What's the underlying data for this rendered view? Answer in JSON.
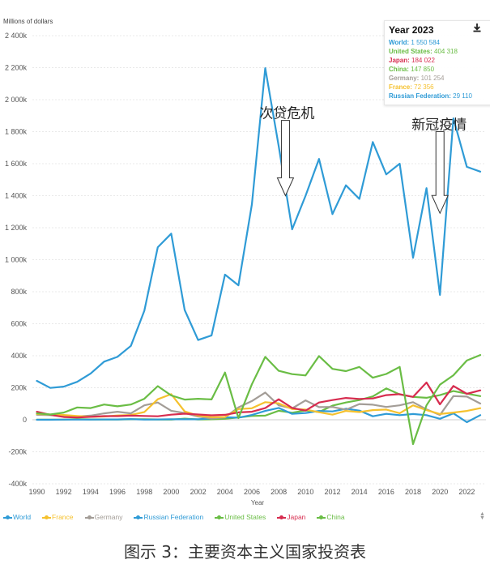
{
  "chart_data": {
    "type": "line",
    "title": "",
    "unit_label": "Millions of dollars",
    "xlabel": "Year",
    "ylabel": "Millions of dollars",
    "ylim": [
      -400000,
      2400000
    ],
    "xlim": [
      1990,
      2023
    ],
    "grid": true,
    "legend_position": "bottom",
    "y_ticks": [
      {
        "value": 2400000,
        "label": "2 400k"
      },
      {
        "value": 2200000,
        "label": "2 200k"
      },
      {
        "value": 2000000,
        "label": "2 000k"
      },
      {
        "value": 1800000,
        "label": "1 800k"
      },
      {
        "value": 1600000,
        "label": "1 600k"
      },
      {
        "value": 1400000,
        "label": "1 400k"
      },
      {
        "value": 1200000,
        "label": "1 200k"
      },
      {
        "value": 1000000,
        "label": "1 000k"
      },
      {
        "value": 800000,
        "label": "800k"
      },
      {
        "value": 600000,
        "label": "600k"
      },
      {
        "value": 400000,
        "label": "400k"
      },
      {
        "value": 200000,
        "label": "200k"
      },
      {
        "value": 0,
        "label": "0"
      },
      {
        "value": -200000,
        "label": "-200k"
      },
      {
        "value": -400000,
        "label": "-400k"
      }
    ],
    "x_ticks": [
      1990,
      1992,
      1994,
      1996,
      1998,
      2000,
      2002,
      2004,
      2006,
      2008,
      2010,
      2012,
      2014,
      2016,
      2018,
      2020,
      2022
    ],
    "x": [
      1990,
      1991,
      1992,
      1993,
      1994,
      1995,
      1996,
      1997,
      1998,
      1999,
      2000,
      2001,
      2002,
      2003,
      2004,
      2005,
      2006,
      2007,
      2008,
      2009,
      2010,
      2011,
      2012,
      2013,
      2014,
      2015,
      2016,
      2017,
      2018,
      2019,
      2020,
      2021,
      2022,
      2023
    ],
    "series": [
      {
        "name": "World",
        "color": "#2f9bd6",
        "values": [
          243000,
          199000,
          207000,
          237000,
          289000,
          363000,
          393000,
          462000,
          681000,
          1078000,
          1163000,
          686000,
          498000,
          527000,
          907000,
          840000,
          1346000,
          2197000,
          1710000,
          1190000,
          1400000,
          1630000,
          1285000,
          1465000,
          1380000,
          1735000,
          1533000,
          1600000,
          1012000,
          1447000,
          780000,
          1883000,
          1580000,
          1550584
        ]
      },
      {
        "name": "France",
        "color": "#f5c12e",
        "values": [
          36000,
          33000,
          30000,
          24000,
          18000,
          20000,
          27000,
          30000,
          48000,
          128000,
          160000,
          52000,
          26000,
          16000,
          17000,
          67000,
          72000,
          110000,
          103000,
          67000,
          64000,
          47000,
          32000,
          55000,
          48000,
          60000,
          64000,
          41000,
          90000,
          60000,
          36000,
          45000,
          55000,
          72356
        ]
      },
      {
        "name": "Germany",
        "color": "#a39d97",
        "values": [
          31000,
          29000,
          25000,
          20000,
          26000,
          40000,
          50000,
          40000,
          90000,
          108000,
          56000,
          42000,
          20000,
          8000,
          15000,
          77000,
          117000,
          170000,
          90000,
          71000,
          121000,
          79000,
          80000,
          63000,
          98000,
          94000,
          80000,
          90000,
          110000,
          65000,
          30000,
          148000,
          145000,
          101254
        ]
      },
      {
        "name": "Russian Federation",
        "color": "#2f9bd6",
        "values": [
          0,
          0,
          1000,
          1000,
          1000,
          2000,
          2000,
          4000,
          1000,
          2000,
          3000,
          3000,
          3000,
          8000,
          15000,
          13000,
          30000,
          55000,
          74000,
          37000,
          42000,
          55000,
          52000,
          69000,
          57000,
          22000,
          37000,
          29000,
          36000,
          29000,
          6000,
          40000,
          -15000,
          29110
        ]
      },
      {
        "name": "United States",
        "color": "#6abd45",
        "values": [
          40000,
          33000,
          45000,
          77000,
          73000,
          95000,
          84000,
          95000,
          131000,
          210000,
          152000,
          126000,
          131000,
          127000,
          295000,
          10000,
          222000,
          393000,
          306000,
          285000,
          277000,
          398000,
          318000,
          304000,
          330000,
          263000,
          286000,
          330000,
          -152000,
          90000,
          219000,
          278000,
          370000,
          404318
        ]
      },
      {
        "name": "Japan",
        "color": "#d72c4f",
        "values": [
          50000,
          31000,
          17000,
          14000,
          18000,
          23000,
          23000,
          26000,
          24000,
          22000,
          32000,
          38000,
          33000,
          28000,
          31000,
          46000,
          50000,
          73000,
          128000,
          74000,
          57000,
          108000,
          123000,
          136000,
          130000,
          133000,
          154000,
          160000,
          143000,
          233000,
          96000,
          211000,
          162000,
          184022
        ]
      },
      {
        "name": "China",
        "color": "#6abd45",
        "values": [
          1000,
          1000,
          1000,
          4000,
          2000,
          2000,
          2000,
          3000,
          3000,
          2000,
          1000,
          7000,
          2000,
          3000,
          6000,
          14000,
          24000,
          26000,
          56000,
          44000,
          58000,
          48000,
          88000,
          108000,
          123000,
          146000,
          196000,
          158000,
          143000,
          137000,
          154000,
          179000,
          163000,
          147850
        ]
      }
    ],
    "annotations": [
      {
        "text": "次贷危机",
        "year": 2008.5,
        "value_top": 1870000,
        "value_bottom": 1400000
      },
      {
        "text": "新冠疫情",
        "year": 2020.0,
        "value_top": 1800000,
        "value_bottom": 1290000
      }
    ]
  },
  "tooltip": {
    "title": "Year 2023",
    "rows": [
      {
        "name": "World:",
        "value": "1 550 584",
        "color": "#2f9bd6"
      },
      {
        "name": "United States:",
        "value": "404 318",
        "color": "#6abd45"
      },
      {
        "name": "Japan:",
        "value": "184 022",
        "color": "#d72c4f"
      },
      {
        "name": "China:",
        "value": "147 850",
        "color": "#6abd45"
      },
      {
        "name": "Germany:",
        "value": "101 254",
        "color": "#a39d97"
      },
      {
        "name": "France:",
        "value": "72 356",
        "color": "#f5c12e"
      },
      {
        "name": "Russian Federation:",
        "value": "29 110",
        "color": "#2f9bd6"
      }
    ]
  },
  "legend": {
    "items": [
      {
        "label": "World",
        "color": "#2f9bd6"
      },
      {
        "label": "France",
        "color": "#f5c12e"
      },
      {
        "label": "Germany",
        "color": "#a39d97"
      },
      {
        "label": "Russian Federation",
        "color": "#2f9bd6"
      },
      {
        "label": "United States",
        "color": "#6abd45"
      },
      {
        "label": "Japan",
        "color": "#d72c4f"
      },
      {
        "label": "China",
        "color": "#6abd45"
      }
    ],
    "scroll_glyph": "▲▼"
  },
  "download_icon": "download-icon",
  "caption": "图示 3：主要资本主义国家投资表"
}
